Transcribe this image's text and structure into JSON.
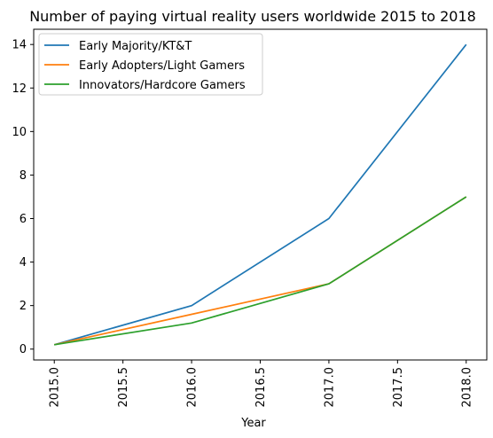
{
  "chart_data": {
    "type": "line",
    "title": "Number of paying virtual reality users worldwide 2015 to 2018",
    "xlabel": "Year",
    "ylabel": "",
    "x": [
      2015.0,
      2016.0,
      2017.0,
      2018.0
    ],
    "xlim": [
      2014.85,
      2018.15
    ],
    "ylim": [
      -0.5,
      14.7
    ],
    "xticks": [
      "2015.0",
      "2015.5",
      "2016.0",
      "2016.5",
      "2017.0",
      "2017.5",
      "2018.0"
    ],
    "yticks": [
      "0",
      "2",
      "4",
      "6",
      "8",
      "10",
      "12",
      "14"
    ],
    "grid": false,
    "legend_position": "top-left",
    "series": [
      {
        "name": "Early Majority/KT&T",
        "color": "#1f77b4",
        "values": [
          0.2,
          2.0,
          6.0,
          14.0
        ]
      },
      {
        "name": "Early Adopters/Light Gamers",
        "color": "#ff7f0e",
        "values": [
          0.2,
          1.6,
          3.0,
          7.0
        ]
      },
      {
        "name": "Innovators/Hardcore Gamers",
        "color": "#2ca02c",
        "values": [
          0.2,
          1.2,
          3.0,
          7.0
        ]
      }
    ]
  }
}
